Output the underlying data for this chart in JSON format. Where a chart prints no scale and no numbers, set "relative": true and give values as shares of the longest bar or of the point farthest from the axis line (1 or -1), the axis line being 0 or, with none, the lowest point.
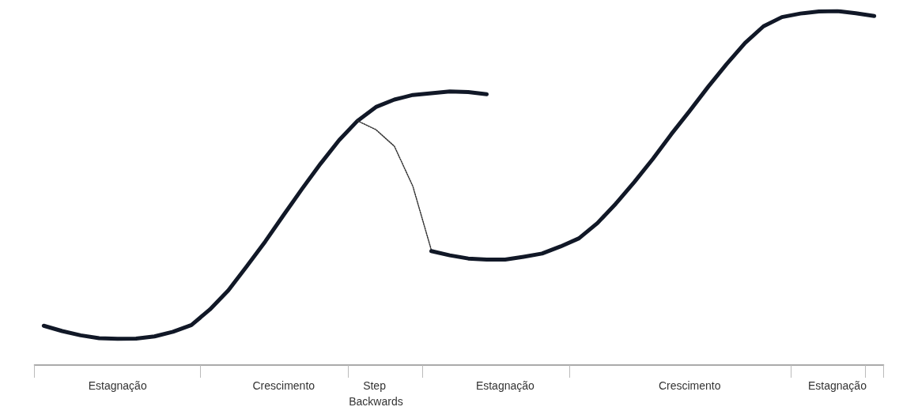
{
  "chart_data": {
    "type": "line",
    "relative": true,
    "categories": [
      null,
      null,
      null,
      null,
      "Estagnação",
      null,
      null,
      null,
      null,
      null,
      null,
      null,
      null,
      "Crescimento",
      null,
      null,
      null,
      null,
      "Step Backwards",
      null,
      null,
      null,
      null,
      null,
      null,
      "Estagnação",
      null,
      null,
      null,
      null,
      null,
      null,
      null,
      null,
      null,
      "Crescimento",
      null,
      null,
      null,
      null,
      null,
      null,
      null,
      "Estagnação",
      null,
      null
    ],
    "marker": "none",
    "series": [
      {
        "color": "#111827",
        "line_style": "solid",
        "values": [
          0.111,
          0.096,
          0.084,
          0.076,
          0.074,
          0.075,
          0.081,
          0.094,
          0.113,
          0.157,
          0.211,
          0.279,
          0.349,
          0.424,
          0.498,
          0.569,
          0.635,
          0.69,
          0.729,
          0.75,
          0.763,
          0.768,
          0.773,
          0.771,
          0.765,
          null,
          null,
          null,
          null,
          null,
          null,
          null,
          null,
          null,
          null,
          null,
          null,
          null,
          null,
          null,
          null,
          null,
          null,
          null,
          null,
          null
        ]
      },
      {
        "color": "#333333",
        "line_style": "dotted",
        "values": [
          null,
          null,
          null,
          null,
          null,
          null,
          null,
          null,
          null,
          null,
          null,
          null,
          null,
          null,
          null,
          null,
          null,
          0.69,
          0.665,
          0.618,
          0.505,
          0.325,
          null,
          null,
          null,
          null,
          null,
          null,
          null,
          null,
          null,
          null,
          null,
          null,
          null,
          null,
          null,
          null,
          null,
          null,
          null,
          null,
          null,
          null,
          null,
          null
        ]
      },
      {
        "color": "#111827",
        "line_style": "solid",
        "values": [
          null,
          null,
          null,
          null,
          null,
          null,
          null,
          null,
          null,
          null,
          null,
          null,
          null,
          null,
          null,
          null,
          null,
          null,
          null,
          null,
          null,
          0.322,
          0.31,
          0.301,
          0.298,
          0.298,
          0.306,
          0.315,
          0.335,
          0.358,
          0.401,
          0.456,
          0.517,
          0.582,
          0.652,
          0.718,
          0.786,
          0.85,
          0.91,
          0.957,
          0.983,
          0.993,
          0.999,
          1,
          0.994,
          0.986
        ]
      }
    ]
  }
}
